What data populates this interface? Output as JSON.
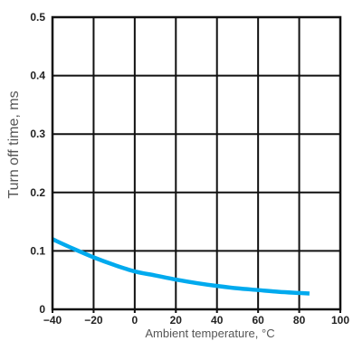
{
  "chart_data": {
    "type": "line",
    "xlabel": "Ambient temperature, °C",
    "ylabel": "Turn off time, ms",
    "xlim": [
      -40,
      100
    ],
    "ylim": [
      0,
      0.5
    ],
    "x_ticks": [
      -40,
      -20,
      0,
      20,
      40,
      60,
      80,
      100
    ],
    "y_ticks": [
      0,
      0.1,
      0.2,
      0.3,
      0.4,
      0.5
    ],
    "x_tick_labels": [
      "−40",
      "−20",
      "0",
      "20",
      "40",
      "60",
      "80",
      "100"
    ],
    "y_tick_labels": [
      "0",
      "0.1",
      "0.2",
      "0.3",
      "0.4",
      "0.5"
    ],
    "grid": true,
    "series": [
      {
        "color": "#00aaee",
        "x": [
          -40,
          -30,
          -20,
          -10,
          0,
          10,
          20,
          30,
          40,
          50,
          60,
          70,
          80,
          85
        ],
        "y": [
          0.12,
          0.104,
          0.089,
          0.076,
          0.065,
          0.058,
          0.051,
          0.045,
          0.04,
          0.036,
          0.033,
          0.03,
          0.028,
          0.027
        ]
      }
    ]
  }
}
